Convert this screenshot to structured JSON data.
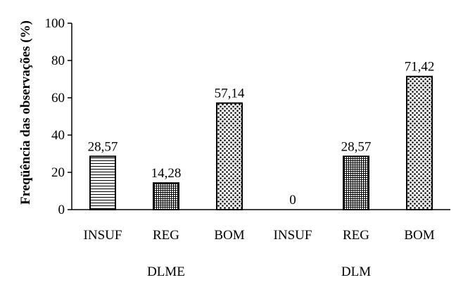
{
  "chart_data": {
    "type": "bar",
    "ylabel": "Freqüência das observações (%)",
    "xlabel": "",
    "ylim": [
      0,
      100
    ],
    "yticks": [
      "0",
      "20",
      "40",
      "60",
      "80",
      "100"
    ],
    "groups": [
      "DLME",
      "DLM"
    ],
    "categories": [
      "INSUF",
      "REG",
      "BOM",
      "INSUF",
      "REG",
      "BOM"
    ],
    "values": [
      28.57,
      14.28,
      57.14,
      0,
      28.57,
      71.42
    ],
    "data_labels": [
      "28,57",
      "14,28",
      "57,14",
      "0",
      "28,57",
      "71,42"
    ],
    "patterns": [
      "horizontal-lines",
      "grid",
      "dots",
      "horizontal-lines",
      "grid",
      "dots"
    ],
    "grid": false,
    "legend": "none"
  }
}
